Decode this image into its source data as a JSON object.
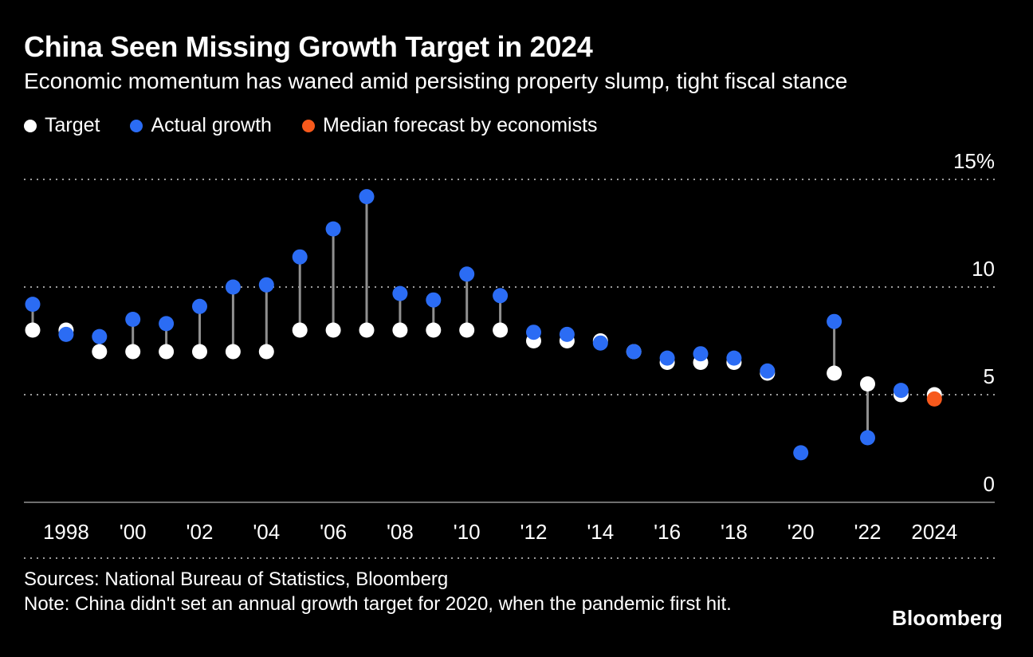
{
  "header": {
    "title": "China Seen Missing Growth Target in 2024",
    "subtitle": "Economic momentum has waned amid persisting property slump, tight fiscal stance"
  },
  "legend": {
    "items": [
      {
        "label": "Target",
        "color": "#ffffff"
      },
      {
        "label": "Actual growth",
        "color": "#2b6cf4"
      },
      {
        "label": "Median forecast by economists",
        "color": "#f7591c"
      }
    ]
  },
  "chart_data": {
    "type": "scatter",
    "title": "China Seen Missing Growth Target in 2024",
    "subtitle": "Economic momentum has waned amid persisting property slump, tight fiscal stance",
    "xlabel": "",
    "ylabel": "",
    "unit": "%",
    "ylim": [
      0,
      15
    ],
    "xlim": [
      1997,
      2024
    ],
    "grid": "horizontal-dotted",
    "legend_position": "top-left",
    "years": [
      1997,
      1998,
      1999,
      2000,
      2001,
      2002,
      2003,
      2004,
      2005,
      2006,
      2007,
      2008,
      2009,
      2010,
      2011,
      2012,
      2013,
      2014,
      2015,
      2016,
      2017,
      2018,
      2019,
      2020,
      2021,
      2022,
      2023,
      2024
    ],
    "series": [
      {
        "name": "Target",
        "color": "#ffffff",
        "values": [
          8,
          8,
          7,
          7,
          7,
          7,
          7,
          7,
          8,
          8,
          8,
          8,
          8,
          8,
          8,
          7.5,
          7.5,
          7.5,
          7,
          6.5,
          6.5,
          6.5,
          6,
          null,
          6,
          5.5,
          5,
          5
        ]
      },
      {
        "name": "Actual growth",
        "color": "#2b6cf4",
        "values": [
          9.2,
          7.8,
          7.7,
          8.5,
          8.3,
          9.1,
          10,
          10.1,
          11.4,
          12.7,
          14.2,
          9.7,
          9.4,
          10.6,
          9.6,
          7.9,
          7.8,
          7.4,
          7,
          6.7,
          6.9,
          6.7,
          6.1,
          2.3,
          8.4,
          3,
          5.2,
          null
        ]
      },
      {
        "name": "Median forecast by economists",
        "color": "#f7591c",
        "values": [
          null,
          null,
          null,
          null,
          null,
          null,
          null,
          null,
          null,
          null,
          null,
          null,
          null,
          null,
          null,
          null,
          null,
          null,
          null,
          null,
          null,
          null,
          null,
          null,
          null,
          null,
          null,
          4.8
        ]
      }
    ],
    "y_ticks": [
      {
        "value": 15,
        "label": "15%"
      },
      {
        "value": 10,
        "label": "10"
      },
      {
        "value": 5,
        "label": "5"
      },
      {
        "value": 0,
        "label": "0"
      }
    ],
    "x_ticks": [
      {
        "year": 1998,
        "label": "1998"
      },
      {
        "year": 2000,
        "label": "'00"
      },
      {
        "year": 2002,
        "label": "'02"
      },
      {
        "year": 2004,
        "label": "'04"
      },
      {
        "year": 2006,
        "label": "'06"
      },
      {
        "year": 2008,
        "label": "'08"
      },
      {
        "year": 2010,
        "label": "'10"
      },
      {
        "year": 2012,
        "label": "'12"
      },
      {
        "year": 2014,
        "label": "'14"
      },
      {
        "year": 2016,
        "label": "'16"
      },
      {
        "year": 2018,
        "label": "'18"
      },
      {
        "year": 2020,
        "label": "'20"
      },
      {
        "year": 2022,
        "label": "'22"
      },
      {
        "year": 2024,
        "label": "2024"
      }
    ]
  },
  "footer": {
    "sources": "Sources: National Bureau of Statistics, Bloomberg",
    "note": "Note: China didn't set an annual growth target for 2020, when the pandemic first hit.",
    "brand": "Bloomberg"
  },
  "colors": {
    "background": "#000000",
    "target": "#ffffff",
    "actual": "#2b6cf4",
    "forecast": "#f7591c",
    "grid": "#9b9b9b",
    "axis": "#6f6f6f",
    "stem": "#909090",
    "text": "#ffffff"
  }
}
